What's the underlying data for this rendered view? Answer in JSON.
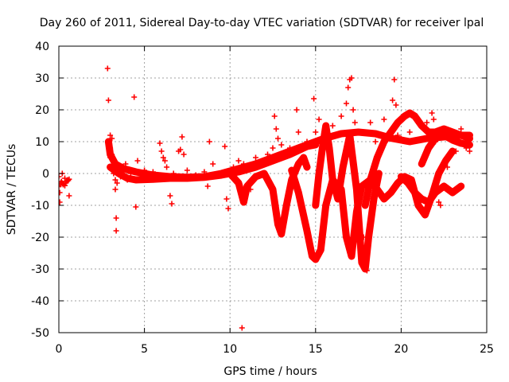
{
  "chart_data": {
    "type": "scatter",
    "title": "Day 260 of 2011, Sidereal Day-to-day VTEC variation (SDTVAR) for receiver lpal",
    "xlabel": "GPS time / hours",
    "ylabel": "SDTVAR / TECUs",
    "xlim": [
      0,
      25
    ],
    "ylim": [
      -50,
      40
    ],
    "xticks": [
      0,
      5,
      10,
      15,
      20,
      25
    ],
    "yticks": [
      -50,
      -40,
      -30,
      -20,
      -10,
      0,
      10,
      20,
      30,
      40
    ],
    "xtick_labels": [
      "0",
      "5",
      "10",
      "15",
      "20",
      "25"
    ],
    "ytick_labels": [
      "-50",
      "-40",
      "-30",
      "-20",
      "-10",
      "0",
      "10",
      "20",
      "30",
      "40"
    ],
    "grid": true,
    "marker": "+",
    "color": "#ff0000",
    "series": [
      {
        "name": "SDTVAR",
        "dense_traces": [
          [
            [
              2.9,
              10
            ],
            [
              3.0,
              6
            ],
            [
              3.3,
              3
            ],
            [
              3.8,
              1.5
            ],
            [
              4.5,
              0.5
            ],
            [
              5.5,
              -0.5
            ],
            [
              6.5,
              -1
            ],
            [
              7.5,
              -1.2
            ],
            [
              8.5,
              -1
            ],
            [
              9.5,
              0
            ],
            [
              10.5,
              1.5
            ],
            [
              11.5,
              3
            ],
            [
              12.5,
              5
            ],
            [
              13.5,
              7
            ],
            [
              14.5,
              9
            ],
            [
              15.5,
              11
            ],
            [
              16.5,
              12.5
            ],
            [
              17.5,
              13
            ],
            [
              18.5,
              12.5
            ],
            [
              19.5,
              11
            ],
            [
              20.5,
              10
            ],
            [
              21.5,
              11
            ],
            [
              22.5,
              11.5
            ],
            [
              23.5,
              12
            ],
            [
              24.0,
              12
            ]
          ],
          [
            [
              3.0,
              2
            ],
            [
              3.5,
              0
            ],
            [
              4.0,
              -1.5
            ],
            [
              4.5,
              -2
            ],
            [
              5.5,
              -1.8
            ],
            [
              6.5,
              -1.5
            ],
            [
              7.5,
              -1.5
            ],
            [
              8.5,
              -1.2
            ],
            [
              9.5,
              -0.5
            ],
            [
              10.5,
              0.5
            ],
            [
              11.5,
              2
            ],
            [
              12.5,
              4
            ],
            [
              13.5,
              6
            ],
            [
              14.5,
              8.5
            ],
            [
              15.0,
              9
            ]
          ],
          [
            [
              10.0,
              0
            ],
            [
              10.5,
              -3
            ],
            [
              10.8,
              -9
            ],
            [
              11.0,
              -4
            ],
            [
              11.5,
              -1
            ],
            [
              12.0,
              0
            ],
            [
              12.5,
              -5
            ],
            [
              12.8,
              -16
            ],
            [
              13.0,
              -19
            ],
            [
              13.3,
              -10
            ],
            [
              13.6,
              -2
            ],
            [
              14.0,
              3
            ],
            [
              14.3,
              5
            ],
            [
              14.5,
              2
            ]
          ],
          [
            [
              13.6,
              1
            ],
            [
              14.0,
              -6
            ],
            [
              14.5,
              -18
            ],
            [
              14.8,
              -26
            ],
            [
              15.0,
              -27
            ],
            [
              15.3,
              -24
            ],
            [
              15.6,
              -10
            ],
            [
              16.0,
              -2
            ],
            [
              16.5,
              -5
            ],
            [
              16.8,
              -20
            ],
            [
              17.1,
              -26
            ],
            [
              17.4,
              -12
            ],
            [
              17.7,
              -4
            ],
            [
              18.2,
              -2
            ],
            [
              18.6,
              -5
            ],
            [
              19.0,
              -8
            ],
            [
              19.4,
              -6
            ],
            [
              19.8,
              -3
            ],
            [
              20.2,
              -1
            ],
            [
              20.6,
              -2
            ],
            [
              21.0,
              -10
            ],
            [
              21.4,
              -13
            ],
            [
              21.8,
              -7
            ],
            [
              22.2,
              0
            ],
            [
              22.6,
              4
            ],
            [
              23.0,
              7
            ]
          ],
          [
            [
              15.0,
              -10
            ],
            [
              15.2,
              0
            ],
            [
              15.4,
              8
            ],
            [
              15.6,
              15
            ],
            [
              15.8,
              8
            ],
            [
              16.0,
              -2
            ],
            [
              16.3,
              -8
            ],
            [
              16.6,
              2
            ],
            [
              17.0,
              12
            ],
            [
              17.4,
              -5
            ],
            [
              17.7,
              -28
            ],
            [
              17.9,
              -30
            ],
            [
              18.1,
              -20
            ],
            [
              18.4,
              -8
            ],
            [
              18.7,
              0
            ]
          ],
          [
            [
              17.9,
              -10
            ],
            [
              18.2,
              -2
            ],
            [
              18.6,
              5
            ],
            [
              19.0,
              10
            ],
            [
              19.4,
              13
            ],
            [
              19.8,
              16
            ],
            [
              20.2,
              18
            ],
            [
              20.5,
              19
            ],
            [
              20.8,
              18
            ],
            [
              21.2,
              15
            ],
            [
              21.6,
              13
            ],
            [
              22.0,
              13
            ],
            [
              22.5,
              14
            ],
            [
              23.0,
              13
            ],
            [
              23.5,
              12
            ],
            [
              24.0,
              11
            ]
          ],
          [
            [
              20.0,
              -1
            ],
            [
              20.4,
              -3
            ],
            [
              20.8,
              -6
            ],
            [
              21.2,
              -8
            ],
            [
              21.6,
              -9
            ],
            [
              22.0,
              -6
            ],
            [
              22.5,
              -4
            ],
            [
              23.0,
              -6
            ],
            [
              23.5,
              -4
            ]
          ],
          [
            [
              21.2,
              3
            ],
            [
              21.6,
              8
            ],
            [
              22.0,
              11
            ],
            [
              22.5,
              12
            ],
            [
              23.0,
              10.5
            ],
            [
              23.5,
              9.5
            ],
            [
              24.0,
              9
            ]
          ]
        ],
        "points": [
          [
            0.0,
            -1
          ],
          [
            0.0,
            -4
          ],
          [
            0.05,
            -6
          ],
          [
            0.05,
            -9
          ],
          [
            0.1,
            -3
          ],
          [
            0.1,
            -3.5
          ],
          [
            0.15,
            -2.5
          ],
          [
            0.2,
            -3
          ],
          [
            0.25,
            -3.5
          ],
          [
            0.3,
            -3.2
          ],
          [
            0.35,
            -3.8
          ],
          [
            0.4,
            -3
          ],
          [
            0.45,
            -2.5
          ],
          [
            0.5,
            -2
          ],
          [
            0.55,
            -2.2
          ],
          [
            0.6,
            -1.8
          ],
          [
            0.35,
            -1.5
          ],
          [
            0.6,
            -7
          ],
          [
            0.2,
            0
          ],
          [
            2.85,
            33
          ],
          [
            2.9,
            23
          ],
          [
            3.0,
            12
          ],
          [
            3.0,
            8
          ],
          [
            3.0,
            5
          ],
          [
            3.1,
            11
          ],
          [
            3.1,
            6
          ],
          [
            3.2,
            4
          ],
          [
            3.2,
            0
          ],
          [
            3.3,
            -2
          ],
          [
            3.3,
            -5
          ],
          [
            3.35,
            -14
          ],
          [
            3.35,
            -18
          ],
          [
            3.4,
            -3
          ],
          [
            3.5,
            2
          ],
          [
            3.6,
            -1
          ],
          [
            3.7,
            1
          ],
          [
            3.9,
            3
          ],
          [
            4.0,
            -2
          ],
          [
            4.2,
            0
          ],
          [
            4.4,
            24
          ],
          [
            4.5,
            -10.5
          ],
          [
            4.6,
            4
          ],
          [
            5.0,
            1
          ],
          [
            5.5,
            0.5
          ],
          [
            5.9,
            9.5
          ],
          [
            6.0,
            7
          ],
          [
            6.1,
            5
          ],
          [
            6.2,
            4
          ],
          [
            6.3,
            2
          ],
          [
            6.5,
            -7
          ],
          [
            6.6,
            -9.5
          ],
          [
            6.7,
            0
          ],
          [
            7.0,
            7
          ],
          [
            7.1,
            7.5
          ],
          [
            7.2,
            11.5
          ],
          [
            7.3,
            6
          ],
          [
            7.5,
            1
          ],
          [
            8.0,
            -0.5
          ],
          [
            8.5,
            0.5
          ],
          [
            8.7,
            -4
          ],
          [
            8.8,
            10
          ],
          [
            9.0,
            3
          ],
          [
            9.5,
            0
          ],
          [
            9.7,
            8.5
          ],
          [
            9.8,
            -8
          ],
          [
            9.9,
            -11
          ],
          [
            10.0,
            1
          ],
          [
            10.2,
            2
          ],
          [
            10.5,
            4
          ],
          [
            10.7,
            -48.5
          ],
          [
            10.8,
            3
          ],
          [
            11.0,
            2.5
          ],
          [
            11.2,
            -5
          ],
          [
            11.5,
            5
          ],
          [
            12.0,
            4
          ],
          [
            12.2,
            6
          ],
          [
            12.5,
            8
          ],
          [
            12.6,
            18
          ],
          [
            12.7,
            14
          ],
          [
            12.8,
            11
          ],
          [
            13.0,
            9
          ],
          [
            13.5,
            8
          ],
          [
            13.9,
            20
          ],
          [
            14.0,
            13
          ],
          [
            14.5,
            10
          ],
          [
            14.9,
            23.5
          ],
          [
            15.0,
            13
          ],
          [
            15.2,
            17
          ],
          [
            15.4,
            8
          ],
          [
            15.5,
            10
          ],
          [
            16.0,
            15
          ],
          [
            16.5,
            18
          ],
          [
            16.8,
            22
          ],
          [
            16.9,
            27
          ],
          [
            17.0,
            29.5
          ],
          [
            17.1,
            30
          ],
          [
            17.2,
            20
          ],
          [
            17.3,
            16
          ],
          [
            17.5,
            13
          ],
          [
            17.8,
            -20
          ],
          [
            18.0,
            -30.5
          ],
          [
            18.2,
            16
          ],
          [
            18.5,
            10
          ],
          [
            19.0,
            17
          ],
          [
            19.5,
            23
          ],
          [
            19.6,
            29.5
          ],
          [
            19.7,
            21.5
          ],
          [
            19.8,
            12
          ],
          [
            20.0,
            11
          ],
          [
            20.5,
            13
          ],
          [
            21.0,
            -8
          ],
          [
            21.5,
            16
          ],
          [
            21.8,
            19
          ],
          [
            21.9,
            17
          ],
          [
            22.0,
            10
          ],
          [
            22.2,
            -9
          ],
          [
            22.3,
            -10
          ],
          [
            22.5,
            -4
          ],
          [
            22.7,
            2
          ],
          [
            23.0,
            13
          ],
          [
            23.2,
            7
          ],
          [
            23.5,
            14
          ],
          [
            23.8,
            8
          ],
          [
            24.0,
            7
          ]
        ]
      }
    ]
  }
}
